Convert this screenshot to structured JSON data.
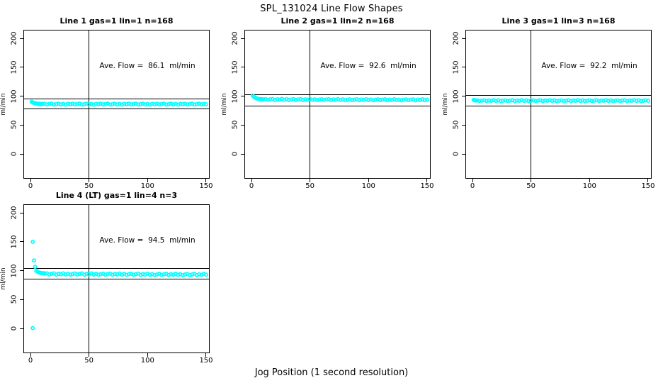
{
  "page": {
    "title": "SPL_131024  Line Flow Shapes",
    "xlabel": "Jog Position (1 second resolution)",
    "marker_color": "#00FFFF",
    "line_color": "#000000",
    "background": "#ffffff"
  },
  "chart_data": [
    {
      "type": "scatter",
      "title": "Line 1 gas=1 lin=1 n=168",
      "annotation": "Ave. Flow =  86.1  ml/min",
      "ave_flow": 86.1,
      "n": 168,
      "ylabel": "ml/min",
      "x_ticks": [
        0,
        50,
        100,
        150
      ],
      "y_ticks": [
        0,
        50,
        100,
        150,
        200
      ],
      "xlim": [
        -6,
        156
      ],
      "ylim": [
        -44,
        213
      ],
      "vline_x": 50,
      "hlines": [
        94.7,
        77.5
      ],
      "legend": "none",
      "grid": "off",
      "points": [
        [
          1,
          90.2
        ],
        [
          2,
          89.0
        ],
        [
          3,
          88.0
        ],
        [
          4,
          87.4
        ],
        [
          5,
          87.6
        ],
        [
          6,
          86.8
        ],
        [
          7,
          86.3
        ],
        [
          8,
          86.9
        ],
        [
          9,
          86.0
        ],
        [
          10,
          86.5
        ],
        [
          12,
          86.8
        ],
        [
          14,
          85.6
        ],
        [
          16,
          86.3
        ],
        [
          18,
          87.0
        ],
        [
          20,
          85.4
        ],
        [
          22,
          86.1
        ],
        [
          24,
          86.9
        ],
        [
          26,
          85.7
        ],
        [
          28,
          86.4
        ],
        [
          30,
          85.2
        ],
        [
          32,
          86.6
        ],
        [
          34,
          86.0
        ],
        [
          36,
          86.8
        ],
        [
          38,
          85.6
        ],
        [
          40,
          86.3
        ],
        [
          42,
          87.0
        ],
        [
          44,
          85.4
        ],
        [
          46,
          86.1
        ],
        [
          48,
          86.9
        ],
        [
          50,
          85.7
        ],
        [
          52,
          86.4
        ],
        [
          54,
          85.2
        ],
        [
          56,
          86.6
        ],
        [
          58,
          86.0
        ],
        [
          60,
          86.8
        ],
        [
          62,
          85.6
        ],
        [
          64,
          86.3
        ],
        [
          66,
          87.0
        ],
        [
          68,
          85.4
        ],
        [
          70,
          86.1
        ],
        [
          72,
          86.9
        ],
        [
          74,
          85.7
        ],
        [
          76,
          86.4
        ],
        [
          78,
          85.2
        ],
        [
          80,
          86.6
        ],
        [
          82,
          86.0
        ],
        [
          84,
          86.8
        ],
        [
          86,
          85.6
        ],
        [
          88,
          86.3
        ],
        [
          90,
          87.0
        ],
        [
          92,
          85.4
        ],
        [
          94,
          86.1
        ],
        [
          96,
          86.9
        ],
        [
          98,
          85.7
        ],
        [
          100,
          86.4
        ],
        [
          102,
          85.2
        ],
        [
          104,
          86.6
        ],
        [
          106,
          86.0
        ],
        [
          108,
          86.8
        ],
        [
          110,
          85.6
        ],
        [
          112,
          86.3
        ],
        [
          114,
          87.0
        ],
        [
          116,
          85.4
        ],
        [
          118,
          86.1
        ],
        [
          120,
          86.9
        ],
        [
          122,
          85.7
        ],
        [
          124,
          86.4
        ],
        [
          126,
          85.2
        ],
        [
          128,
          86.6
        ],
        [
          130,
          86.0
        ],
        [
          132,
          86.8
        ],
        [
          134,
          85.6
        ],
        [
          136,
          86.3
        ],
        [
          138,
          87.0
        ],
        [
          140,
          85.4
        ],
        [
          142,
          86.1
        ],
        [
          144,
          86.9
        ],
        [
          146,
          85.7
        ],
        [
          148,
          86.4
        ],
        [
          150,
          86.0
        ]
      ]
    },
    {
      "type": "scatter",
      "title": "Line 2 gas=1 lin=2 n=168",
      "annotation": "Ave. Flow =  92.6  ml/min",
      "ave_flow": 92.6,
      "n": 168,
      "ylabel": "ml/min",
      "x_ticks": [
        0,
        50,
        100,
        150
      ],
      "y_ticks": [
        0,
        50,
        100,
        150,
        200
      ],
      "xlim": [
        -6,
        156
      ],
      "ylim": [
        -44,
        213
      ],
      "vline_x": 50,
      "hlines": [
        101.9,
        83.3
      ],
      "legend": "none",
      "grid": "off",
      "points": [
        [
          1,
          100.9
        ],
        [
          2,
          99.0
        ],
        [
          3,
          97.6
        ],
        [
          4,
          96.5
        ],
        [
          5,
          95.8
        ],
        [
          6,
          95.2
        ],
        [
          7,
          94.8
        ],
        [
          8,
          94.5
        ],
        [
          9,
          94.9
        ],
        [
          10,
          94.2
        ],
        [
          12,
          94.9
        ],
        [
          14,
          93.7
        ],
        [
          16,
          94.4
        ],
        [
          18,
          95.0
        ],
        [
          20,
          93.4
        ],
        [
          22,
          94.5
        ],
        [
          24,
          93.9
        ],
        [
          26,
          95.1
        ],
        [
          28,
          93.7
        ],
        [
          30,
          94.6
        ],
        [
          32,
          93.3
        ],
        [
          34,
          94.1
        ],
        [
          36,
          94.7
        ],
        [
          38,
          93.5
        ],
        [
          40,
          94.2
        ],
        [
          42,
          94.9
        ],
        [
          44,
          93.3
        ],
        [
          46,
          94.4
        ],
        [
          48,
          93.8
        ],
        [
          50,
          95.0
        ],
        [
          52,
          93.5
        ],
        [
          54,
          94.4
        ],
        [
          56,
          93.1
        ],
        [
          58,
          94.0
        ],
        [
          60,
          94.6
        ],
        [
          62,
          93.4
        ],
        [
          64,
          94.1
        ],
        [
          66,
          94.7
        ],
        [
          68,
          93.1
        ],
        [
          70,
          94.2
        ],
        [
          72,
          93.6
        ],
        [
          74,
          94.8
        ],
        [
          76,
          93.4
        ],
        [
          78,
          94.3
        ],
        [
          80,
          92.9
        ],
        [
          82,
          93.8
        ],
        [
          84,
          94.4
        ],
        [
          86,
          93.2
        ],
        [
          88,
          93.9
        ],
        [
          90,
          94.6
        ],
        [
          92,
          93.0
        ],
        [
          94,
          94.1
        ],
        [
          96,
          93.5
        ],
        [
          98,
          94.7
        ],
        [
          100,
          93.2
        ],
        [
          102,
          94.1
        ],
        [
          104,
          92.8
        ],
        [
          106,
          93.7
        ],
        [
          108,
          94.3
        ],
        [
          110,
          93.1
        ],
        [
          112,
          93.8
        ],
        [
          114,
          94.5
        ],
        [
          116,
          92.9
        ],
        [
          118,
          94.0
        ],
        [
          120,
          93.4
        ],
        [
          122,
          94.6
        ],
        [
          124,
          93.1
        ],
        [
          126,
          94.0
        ],
        [
          128,
          92.7
        ],
        [
          130,
          93.6
        ],
        [
          132,
          94.2
        ],
        [
          134,
          93.0
        ],
        [
          136,
          93.7
        ],
        [
          138,
          94.4
        ],
        [
          140,
          92.8
        ],
        [
          142,
          93.9
        ],
        [
          144,
          93.3
        ],
        [
          146,
          94.5
        ],
        [
          148,
          93.0
        ],
        [
          150,
          93.9
        ]
      ]
    },
    {
      "type": "scatter",
      "title": "Line 3 gas=1 lin=3 n=168",
      "annotation": "Ave. Flow =  92.2  ml/min",
      "ave_flow": 92.2,
      "n": 168,
      "ylabel": "ml/min",
      "x_ticks": [
        0,
        50,
        100,
        150
      ],
      "y_ticks": [
        0,
        50,
        100,
        150,
        200
      ],
      "xlim": [
        -6,
        156
      ],
      "ylim": [
        -44,
        213
      ],
      "vline_x": 50,
      "hlines": [
        101.4,
        83.0
      ],
      "legend": "none",
      "grid": "off",
      "points": [
        [
          1,
          93.5
        ],
        [
          2,
          92.8
        ],
        [
          3,
          92.4
        ],
        [
          4,
          92.7
        ],
        [
          6,
          91.7
        ],
        [
          8,
          92.3
        ],
        [
          10,
          92.9
        ],
        [
          12,
          91.5
        ],
        [
          14,
          92.4
        ],
        [
          16,
          92.0
        ],
        [
          18,
          93.0
        ],
        [
          20,
          91.8
        ],
        [
          22,
          92.6
        ],
        [
          24,
          91.4
        ],
        [
          26,
          92.2
        ],
        [
          28,
          92.7
        ],
        [
          30,
          91.7
        ],
        [
          32,
          92.3
        ],
        [
          34,
          92.9
        ],
        [
          36,
          91.5
        ],
        [
          38,
          92.4
        ],
        [
          40,
          92.0
        ],
        [
          42,
          93.0
        ],
        [
          44,
          91.8
        ],
        [
          46,
          92.6
        ],
        [
          48,
          91.4
        ],
        [
          50,
          92.2
        ],
        [
          52,
          92.7
        ],
        [
          54,
          91.7
        ],
        [
          56,
          92.3
        ],
        [
          58,
          92.9
        ],
        [
          60,
          91.5
        ],
        [
          62,
          92.4
        ],
        [
          64,
          92.0
        ],
        [
          66,
          93.0
        ],
        [
          68,
          91.8
        ],
        [
          70,
          92.6
        ],
        [
          72,
          91.4
        ],
        [
          74,
          92.2
        ],
        [
          76,
          92.7
        ],
        [
          78,
          91.7
        ],
        [
          80,
          92.3
        ],
        [
          82,
          92.9
        ],
        [
          84,
          91.5
        ],
        [
          86,
          92.4
        ],
        [
          88,
          92.0
        ],
        [
          90,
          93.0
        ],
        [
          92,
          91.8
        ],
        [
          94,
          92.6
        ],
        [
          96,
          91.4
        ],
        [
          98,
          92.2
        ],
        [
          100,
          92.7
        ],
        [
          102,
          91.7
        ],
        [
          104,
          92.3
        ],
        [
          106,
          92.9
        ],
        [
          108,
          91.5
        ],
        [
          110,
          92.4
        ],
        [
          112,
          92.0
        ],
        [
          114,
          93.0
        ],
        [
          116,
          91.8
        ],
        [
          118,
          92.6
        ],
        [
          120,
          91.4
        ],
        [
          122,
          92.2
        ],
        [
          124,
          92.7
        ],
        [
          126,
          91.7
        ],
        [
          128,
          92.3
        ],
        [
          130,
          92.9
        ],
        [
          132,
          91.5
        ],
        [
          134,
          92.4
        ],
        [
          136,
          92.0
        ],
        [
          138,
          93.0
        ],
        [
          140,
          91.8
        ],
        [
          142,
          92.6
        ],
        [
          144,
          91.4
        ],
        [
          146,
          92.2
        ],
        [
          148,
          92.7
        ],
        [
          150,
          91.9
        ]
      ]
    },
    {
      "type": "scatter",
      "title": "Line 4 (LT) gas=1 lin=4 n=3",
      "annotation": "Ave. Flow =  94.5  ml/min",
      "ave_flow": 94.5,
      "n": 3,
      "ylabel": "ml/min",
      "x_ticks": [
        0,
        50,
        100,
        150
      ],
      "y_ticks": [
        0,
        50,
        100,
        150,
        200
      ],
      "xlim": [
        -6,
        156
      ],
      "ylim": [
        -44,
        213
      ],
      "vline_x": 50,
      "hlines": [
        104.0,
        85.1
      ],
      "legend": "none",
      "grid": "off",
      "points": [
        [
          2,
          149.8
        ],
        [
          2,
          0.5
        ],
        [
          3,
          117.5
        ],
        [
          4,
          106.5
        ],
        [
          5,
          99.5
        ],
        [
          6,
          98.0
        ],
        [
          7,
          97.0
        ],
        [
          8,
          96.3
        ],
        [
          9,
          95.8
        ],
        [
          10,
          95.3
        ],
        [
          11,
          95.8
        ],
        [
          12,
          94.8
        ],
        [
          14,
          95.1
        ],
        [
          16,
          93.3
        ],
        [
          18,
          94.4
        ],
        [
          20,
          95.2
        ],
        [
          22,
          93.0
        ],
        [
          24,
          94.5
        ],
        [
          26,
          93.7
        ],
        [
          28,
          95.2
        ],
        [
          30,
          93.4
        ],
        [
          32,
          94.6
        ],
        [
          34,
          92.9
        ],
        [
          36,
          94.0
        ],
        [
          38,
          95.0
        ],
        [
          40,
          93.2
        ],
        [
          42,
          94.2
        ],
        [
          44,
          95.1
        ],
        [
          46,
          92.9
        ],
        [
          48,
          94.3
        ],
        [
          50,
          93.5
        ],
        [
          52,
          95.1
        ],
        [
          54,
          93.2
        ],
        [
          56,
          94.4
        ],
        [
          58,
          92.7
        ],
        [
          60,
          93.8
        ],
        [
          62,
          94.7
        ],
        [
          64,
          92.9
        ],
        [
          66,
          94.0
        ],
        [
          68,
          94.9
        ],
        [
          70,
          92.7
        ],
        [
          72,
          94.1
        ],
        [
          74,
          93.3
        ],
        [
          76,
          94.9
        ],
        [
          78,
          93.0
        ],
        [
          80,
          94.2
        ],
        [
          82,
          92.5
        ],
        [
          84,
          93.6
        ],
        [
          86,
          94.5
        ],
        [
          88,
          92.7
        ],
        [
          90,
          93.8
        ],
        [
          92,
          94.7
        ],
        [
          94,
          92.5
        ],
        [
          96,
          93.9
        ],
        [
          98,
          93.1
        ],
        [
          100,
          94.7
        ],
        [
          102,
          92.8
        ],
        [
          104,
          94.0
        ],
        [
          106,
          92.3
        ],
        [
          108,
          93.4
        ],
        [
          110,
          94.3
        ],
        [
          112,
          92.5
        ],
        [
          114,
          93.6
        ],
        [
          116,
          94.5
        ],
        [
          118,
          92.3
        ],
        [
          120,
          93.7
        ],
        [
          122,
          92.9
        ],
        [
          124,
          94.5
        ],
        [
          126,
          92.6
        ],
        [
          128,
          93.8
        ],
        [
          130,
          92.1
        ],
        [
          132,
          93.2
        ],
        [
          134,
          94.1
        ],
        [
          136,
          92.3
        ],
        [
          138,
          93.4
        ],
        [
          140,
          94.3
        ],
        [
          142,
          92.1
        ],
        [
          144,
          93.5
        ],
        [
          146,
          92.7
        ],
        [
          148,
          94.3
        ],
        [
          150,
          93.0
        ]
      ]
    }
  ]
}
